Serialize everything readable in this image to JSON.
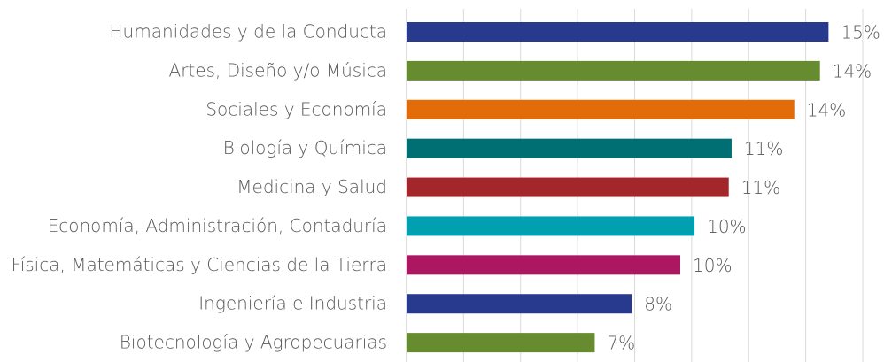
{
  "chart_data": {
    "type": "barh",
    "categories": [
      "Humanidades y de la Conducta",
      "Artes, Diseño y/o Música",
      "Sociales y Economía",
      "Biología y Química",
      "Medicina y Salud",
      "Economía, Administración, Contaduría",
      "Física, Matemáticas y Ciencias de la Tierra",
      "Ingeniería e Industria",
      "Biotecnología y Agropecuarias"
    ],
    "values": [
      14.8,
      14.5,
      13.6,
      11.4,
      11.3,
      10.1,
      9.6,
      7.9,
      6.6
    ],
    "value_labels": [
      "15%",
      "14%",
      "14%",
      "11%",
      "11%",
      "10%",
      "10%",
      "8%",
      "7%"
    ],
    "colors": [
      "#283a8e",
      "#678b2f",
      "#e36c0a",
      "#006f73",
      "#a3262a",
      "#00a0b0",
      "#ab1760",
      "#283a8e",
      "#678b2f"
    ],
    "xlim": [
      0,
      16
    ],
    "xticks": [
      0,
      2,
      4,
      6,
      8,
      10,
      12,
      14,
      16
    ],
    "grid": true
  }
}
